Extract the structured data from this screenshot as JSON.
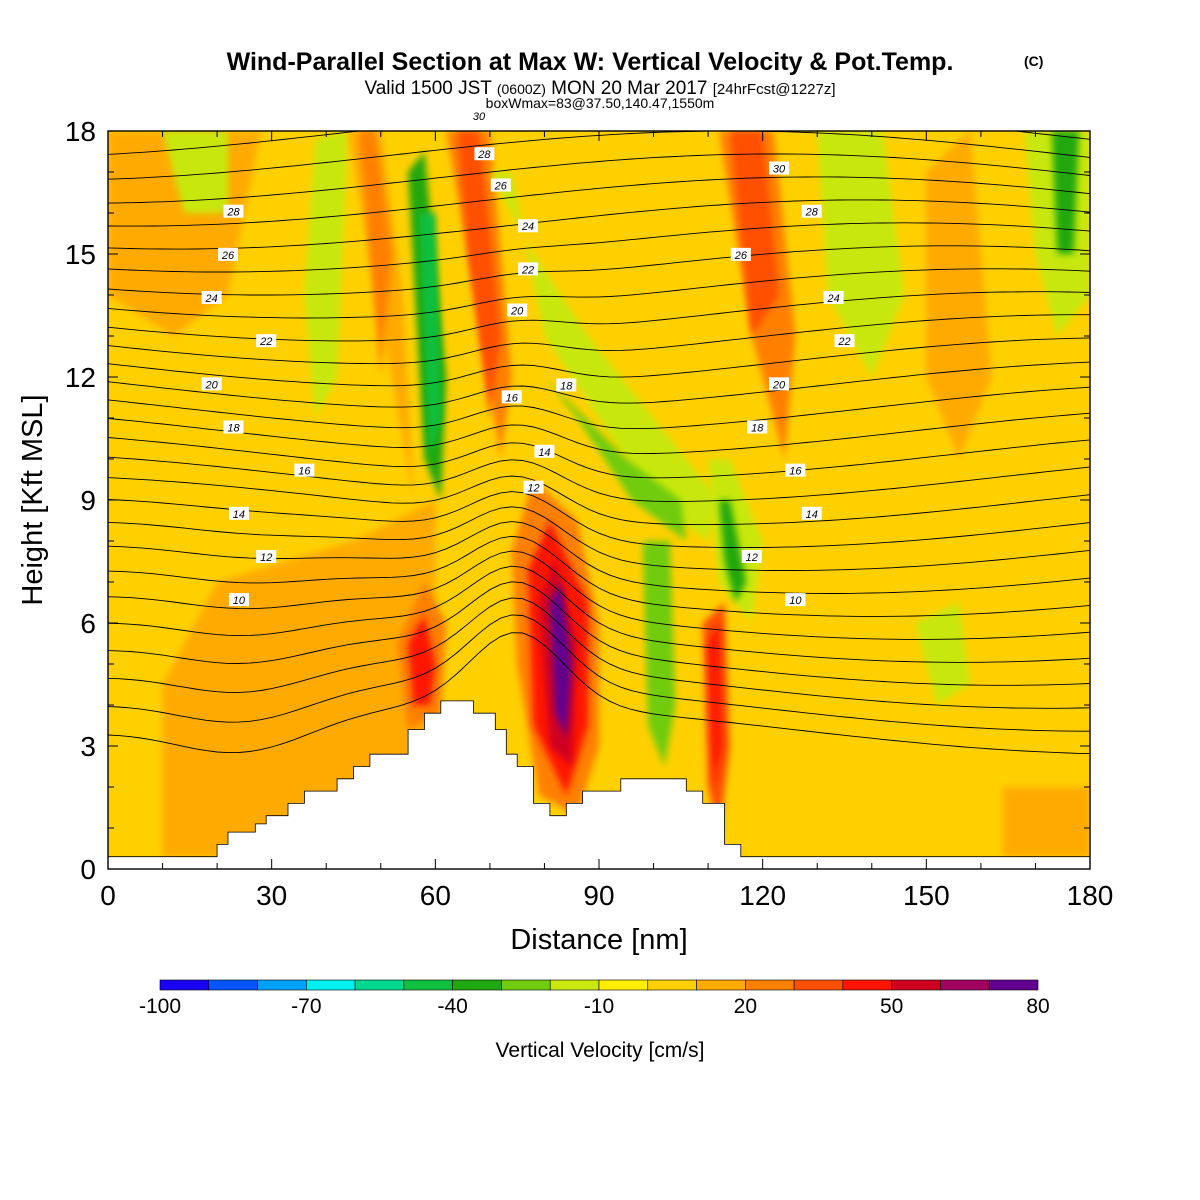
{
  "header": {
    "title": "Wind-Parallel Section at Max W: Vertical Velocity & Pot.Temp.",
    "title_mark": "(C)",
    "valid_prefix": "Valid 1500 JST",
    "valid_utc": "(0600Z)",
    "valid_date": "MON 20 Mar 2017",
    "forecast_tag": "[24hrFcst@1227z]",
    "boxmax": "boxWmax=83@37.50,140.47,1550m"
  },
  "chart_data": {
    "type": "heatmap",
    "xlabel": "Distance [nm]",
    "ylabel": "Height [Kft MSL]",
    "xlim": [
      0,
      180
    ],
    "ylim": [
      0,
      18
    ],
    "xticks": [
      0,
      30,
      60,
      90,
      120,
      150,
      180
    ],
    "yticks": [
      0,
      3,
      6,
      9,
      12,
      15,
      18
    ],
    "colorbar": {
      "label": "Vertical Velocity [cm/s]",
      "ticks": [
        -100,
        -70,
        -40,
        -10,
        20,
        50,
        80
      ],
      "levels": [
        -100,
        -90,
        -80,
        -70,
        -60,
        -50,
        -40,
        -30,
        -20,
        -10,
        0,
        10,
        20,
        30,
        40,
        50,
        60,
        70,
        80
      ],
      "colors": [
        "#1a00f5",
        "#0055ff",
        "#00a0ff",
        "#00f0f0",
        "#00d890",
        "#10c040",
        "#20a810",
        "#70cc10",
        "#c8e810",
        "#ffee00",
        "#ffd000",
        "#ffaa00",
        "#ff8000",
        "#ff5000",
        "#ff1400",
        "#d00020",
        "#a00060",
        "#620090"
      ]
    },
    "terrain_kft": [
      [
        0,
        0.3
      ],
      [
        20,
        0.3
      ],
      [
        20,
        0.6
      ],
      [
        22,
        0.6
      ],
      [
        22,
        0.9
      ],
      [
        27,
        0.9
      ],
      [
        27,
        1.1
      ],
      [
        29,
        1.1
      ],
      [
        29,
        1.3
      ],
      [
        33,
        1.3
      ],
      [
        33,
        1.6
      ],
      [
        36,
        1.6
      ],
      [
        36,
        1.9
      ],
      [
        42,
        1.9
      ],
      [
        42,
        2.2
      ],
      [
        45,
        2.2
      ],
      [
        45,
        2.5
      ],
      [
        48,
        2.5
      ],
      [
        48,
        2.8
      ],
      [
        55,
        2.8
      ],
      [
        55,
        3.4
      ],
      [
        58,
        3.4
      ],
      [
        58,
        3.8
      ],
      [
        61,
        3.8
      ],
      [
        61,
        4.1
      ],
      [
        67,
        4.1
      ],
      [
        67,
        3.8
      ],
      [
        71,
        3.8
      ],
      [
        71,
        3.4
      ],
      [
        73,
        3.4
      ],
      [
        73,
        2.8
      ],
      [
        75,
        2.8
      ],
      [
        75,
        2.5
      ],
      [
        78,
        2.5
      ],
      [
        78,
        1.6
      ],
      [
        81,
        1.6
      ],
      [
        81,
        1.3
      ],
      [
        84,
        1.3
      ],
      [
        84,
        1.6
      ],
      [
        87,
        1.6
      ],
      [
        87,
        1.9
      ],
      [
        94,
        1.9
      ],
      [
        94,
        2.2
      ],
      [
        106,
        2.2
      ],
      [
        106,
        1.9
      ],
      [
        109,
        1.9
      ],
      [
        109,
        1.6
      ],
      [
        113,
        1.6
      ],
      [
        113,
        0.6
      ],
      [
        116,
        0.6
      ],
      [
        116,
        0.3
      ],
      [
        180,
        0.3
      ]
    ],
    "theta_contours_c": [
      {
        "value": 10,
        "x": 24
      },
      {
        "value": 12,
        "x": 29
      },
      {
        "value": 14,
        "x": 24
      },
      {
        "value": 16,
        "x": 36
      },
      {
        "value": 18,
        "x": 23
      },
      {
        "value": 20,
        "x": 19
      },
      {
        "value": 22,
        "x": 29
      },
      {
        "value": 24,
        "x": 19
      },
      {
        "value": 26,
        "x": 22
      },
      {
        "value": 28,
        "x": 23
      },
      {
        "value": 30,
        "x": 68
      },
      {
        "value": 28,
        "x": 69
      },
      {
        "value": 26,
        "x": 72
      },
      {
        "value": 24,
        "x": 77
      },
      {
        "value": 22,
        "x": 77
      },
      {
        "value": 20,
        "x": 75
      },
      {
        "value": 18,
        "x": 84
      },
      {
        "value": 16,
        "x": 74
      },
      {
        "value": 14,
        "x": 80
      },
      {
        "value": 12,
        "x": 78
      },
      {
        "value": 30,
        "x": 123
      },
      {
        "value": 28,
        "x": 129
      },
      {
        "value": 26,
        "x": 116
      },
      {
        "value": 24,
        "x": 133
      },
      {
        "value": 22,
        "x": 135
      },
      {
        "value": 20,
        "x": 123
      },
      {
        "value": 18,
        "x": 119
      },
      {
        "value": 16,
        "x": 126
      },
      {
        "value": 14,
        "x": 129
      },
      {
        "value": 12,
        "x": 118
      },
      {
        "value": 10,
        "x": 126
      }
    ]
  }
}
